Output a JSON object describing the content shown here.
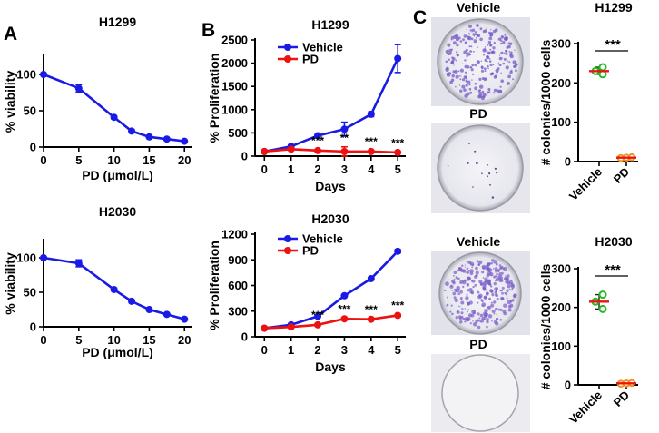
{
  "panel_labels": {
    "a": "A",
    "b": "B",
    "c": "C"
  },
  "colors": {
    "vehicle": "#1a1ae6",
    "pd": "#ee1111",
    "viability": "#1a1ae6",
    "green": "#22bb22",
    "orange": "#f09020",
    "red_line": "#ee1111",
    "stain": "#7a5cc8"
  },
  "chart_data": [
    {
      "id": "viab_h1299",
      "type": "line",
      "title": "H1299",
      "xlabel": "PD (μmol/L)",
      "ylabel": "% viability",
      "xlim": [
        0,
        21
      ],
      "ylim": [
        0,
        125
      ],
      "x_ticks": [
        0,
        5,
        10,
        15,
        20
      ],
      "y_ticks": [
        0,
        50,
        100
      ],
      "series": [
        {
          "name": "PD",
          "x": [
            0,
            5,
            10,
            12.5,
            15,
            17.5,
            20
          ],
          "values": [
            100,
            81,
            41,
            22,
            14,
            11,
            8
          ],
          "err": [
            0,
            5,
            2,
            2,
            1,
            1,
            1
          ]
        }
      ]
    },
    {
      "id": "viab_h2030",
      "type": "line",
      "title": "H2030",
      "xlabel": "PD (μmol/L)",
      "ylabel": "% viability",
      "xlim": [
        0,
        21
      ],
      "ylim": [
        0,
        125
      ],
      "x_ticks": [
        0,
        5,
        10,
        15,
        20
      ],
      "y_ticks": [
        0,
        50,
        100
      ],
      "series": [
        {
          "name": "PD",
          "x": [
            0,
            5,
            10,
            12.5,
            15,
            17.5,
            20
          ],
          "values": [
            100,
            92,
            54,
            37,
            25,
            18,
            11
          ],
          "err": [
            0,
            5,
            2,
            2,
            1,
            1,
            1
          ]
        }
      ]
    },
    {
      "id": "prolif_h1299",
      "type": "line",
      "title": "H1299",
      "xlabel": "Days",
      "ylabel": "% Proliferation",
      "xlim": [
        -0.35,
        5.3
      ],
      "ylim": [
        0,
        2500
      ],
      "x_ticks": [
        0,
        1,
        2,
        3,
        4,
        5
      ],
      "y_ticks": [
        0,
        500,
        1000,
        1500,
        2000,
        2500
      ],
      "series": [
        {
          "name": "Vehicle",
          "x": [
            0,
            1,
            2,
            3,
            4,
            5
          ],
          "values": [
            100,
            210,
            440,
            580,
            900,
            2100
          ],
          "err": [
            0,
            30,
            40,
            150,
            50,
            300
          ]
        },
        {
          "name": "PD",
          "x": [
            0,
            1,
            2,
            3,
            4,
            5
          ],
          "values": [
            100,
            150,
            120,
            100,
            100,
            80
          ],
          "err": [
            0,
            20,
            15,
            100,
            15,
            10
          ]
        }
      ],
      "annotations": [
        {
          "x": 2,
          "text": "***"
        },
        {
          "x": 3,
          "text": "**"
        },
        {
          "x": 4,
          "text": "***"
        },
        {
          "x": 5,
          "text": "***"
        }
      ]
    },
    {
      "id": "prolif_h2030",
      "type": "line",
      "title": "H2030",
      "xlabel": "Days",
      "ylabel": "% Proliferation",
      "xlim": [
        -0.35,
        5.3
      ],
      "ylim": [
        0,
        1200
      ],
      "x_ticks": [
        0,
        1,
        2,
        3,
        4,
        5
      ],
      "y_ticks": [
        0,
        300,
        600,
        900,
        1200
      ],
      "series": [
        {
          "name": "Vehicle",
          "x": [
            0,
            1,
            2,
            3,
            4,
            5
          ],
          "values": [
            100,
            140,
            240,
            480,
            680,
            1000
          ],
          "err": [
            0,
            10,
            10,
            15,
            15,
            20
          ]
        },
        {
          "name": "PD",
          "x": [
            0,
            1,
            2,
            3,
            4,
            5
          ],
          "values": [
            100,
            115,
            140,
            210,
            205,
            250
          ],
          "err": [
            0,
            8,
            8,
            10,
            10,
            12
          ]
        }
      ],
      "annotations": [
        {
          "x": 2,
          "text": "***"
        },
        {
          "x": 3,
          "text": "***"
        },
        {
          "x": 4,
          "text": "***"
        },
        {
          "x": 5,
          "text": "***"
        }
      ]
    },
    {
      "id": "colonies_h1299",
      "type": "scatter",
      "title": "H1299",
      "ylabel": "# colonies/1000 cells",
      "ylim": [
        0,
        300
      ],
      "y_ticks": [
        0,
        100,
        200,
        300
      ],
      "categories": [
        "Vehicle",
        "PD"
      ],
      "points": [
        [
          240,
          230,
          222
        ],
        [
          9,
          10,
          11
        ]
      ],
      "mean": [
        230,
        10
      ],
      "significance": "***"
    },
    {
      "id": "colonies_h2030",
      "type": "scatter",
      "title": "H2030",
      "ylabel": "# colonies/1000 cells",
      "ylim": [
        0,
        300
      ],
      "y_ticks": [
        0,
        100,
        200,
        300
      ],
      "categories": [
        "Vehicle",
        "PD"
      ],
      "points": [
        [
          233,
          215,
          196
        ],
        [
          3,
          4,
          5
        ]
      ],
      "mean": [
        215,
        4
      ],
      "significance": "***"
    }
  ],
  "dishes": {
    "h1299_vehicle_label": "Vehicle",
    "h1299_pd_label": "PD",
    "h2030_vehicle_label": "Vehicle",
    "h2030_pd_label": "PD"
  }
}
